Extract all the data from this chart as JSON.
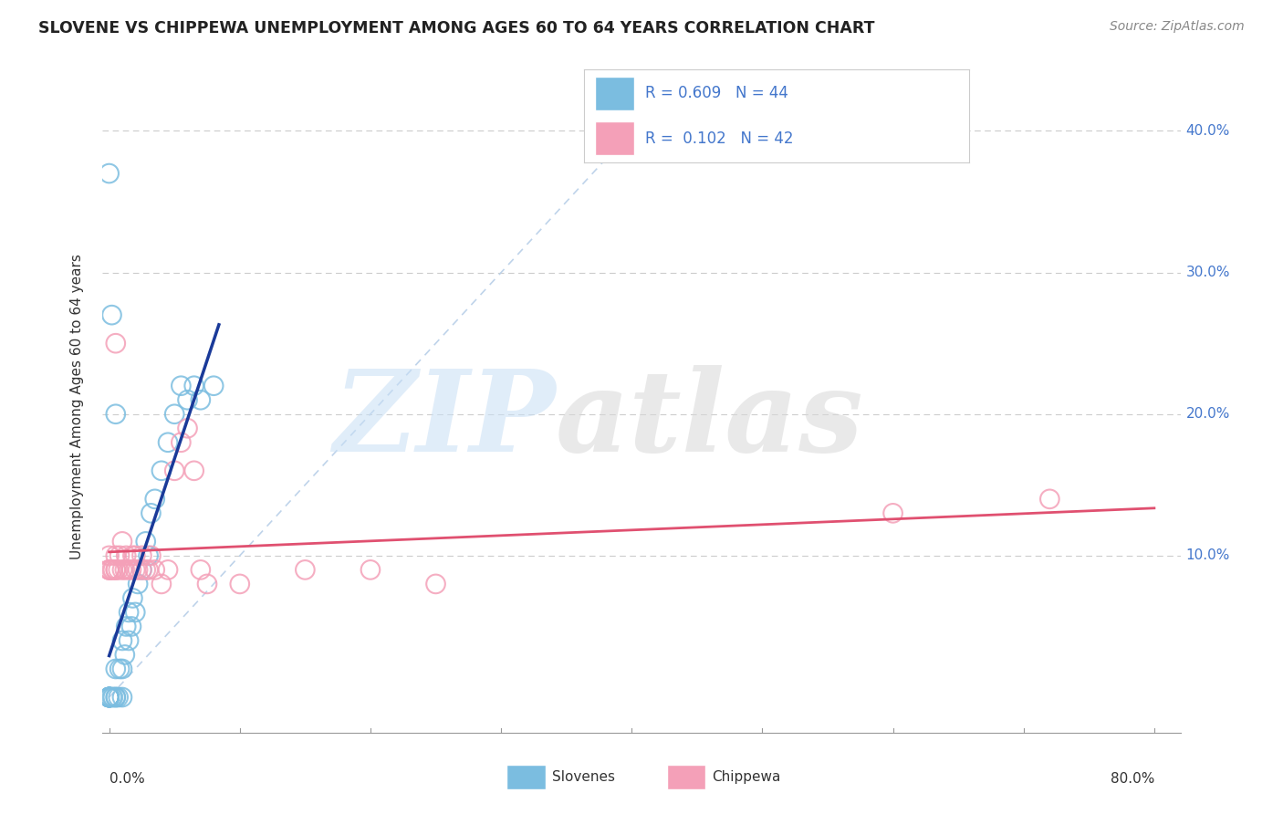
{
  "title": "SLOVENE VS CHIPPEWA UNEMPLOYMENT AMONG AGES 60 TO 64 YEARS CORRELATION CHART",
  "source": "Source: ZipAtlas.com",
  "ylabel": "Unemployment Among Ages 60 to 64 years",
  "ytick_labels": [
    "10.0%",
    "20.0%",
    "30.0%",
    "40.0%"
  ],
  "ytick_values": [
    0.1,
    0.2,
    0.3,
    0.4
  ],
  "xlim": [
    -0.005,
    0.82
  ],
  "ylim": [
    -0.025,
    0.435
  ],
  "slovene_color": "#7bbde0",
  "chippewa_color": "#f4a0b8",
  "slovene_line_color": "#1a3a99",
  "chippewa_line_color": "#e05070",
  "diagonal_color": "#b8cfe8",
  "slovene_points": [
    [
      0.0,
      0.0
    ],
    [
      0.0,
      0.0
    ],
    [
      0.0,
      0.0
    ],
    [
      0.0,
      0.0
    ],
    [
      0.0,
      0.0
    ],
    [
      0.0,
      0.0
    ],
    [
      0.0,
      0.0
    ],
    [
      0.0,
      0.0
    ],
    [
      0.0,
      0.0
    ],
    [
      0.0,
      0.0
    ],
    [
      0.002,
      0.0
    ],
    [
      0.003,
      0.0
    ],
    [
      0.005,
      0.0
    ],
    [
      0.005,
      0.0
    ],
    [
      0.005,
      0.02
    ],
    [
      0.007,
      0.0
    ],
    [
      0.008,
      0.02
    ],
    [
      0.01,
      0.0
    ],
    [
      0.01,
      0.02
    ],
    [
      0.01,
      0.04
    ],
    [
      0.012,
      0.03
    ],
    [
      0.013,
      0.05
    ],
    [
      0.015,
      0.04
    ],
    [
      0.015,
      0.06
    ],
    [
      0.017,
      0.05
    ],
    [
      0.018,
      0.07
    ],
    [
      0.02,
      0.06
    ],
    [
      0.022,
      0.08
    ],
    [
      0.025,
      0.09
    ],
    [
      0.028,
      0.11
    ],
    [
      0.03,
      0.1
    ],
    [
      0.032,
      0.13
    ],
    [
      0.035,
      0.14
    ],
    [
      0.04,
      0.16
    ],
    [
      0.045,
      0.18
    ],
    [
      0.05,
      0.2
    ],
    [
      0.055,
      0.22
    ],
    [
      0.06,
      0.21
    ],
    [
      0.065,
      0.22
    ],
    [
      0.07,
      0.21
    ],
    [
      0.08,
      0.22
    ],
    [
      0.0,
      0.37
    ],
    [
      0.002,
      0.27
    ],
    [
      0.005,
      0.2
    ]
  ],
  "chippewa_points": [
    [
      0.0,
      0.09
    ],
    [
      0.0,
      0.09
    ],
    [
      0.0,
      0.09
    ],
    [
      0.0,
      0.1
    ],
    [
      0.002,
      0.09
    ],
    [
      0.003,
      0.09
    ],
    [
      0.005,
      0.09
    ],
    [
      0.005,
      0.09
    ],
    [
      0.005,
      0.1
    ],
    [
      0.005,
      0.25
    ],
    [
      0.007,
      0.09
    ],
    [
      0.008,
      0.1
    ],
    [
      0.01,
      0.09
    ],
    [
      0.01,
      0.11
    ],
    [
      0.012,
      0.09
    ],
    [
      0.013,
      0.1
    ],
    [
      0.015,
      0.09
    ],
    [
      0.017,
      0.09
    ],
    [
      0.018,
      0.1
    ],
    [
      0.02,
      0.09
    ],
    [
      0.02,
      0.1
    ],
    [
      0.022,
      0.09
    ],
    [
      0.025,
      0.09
    ],
    [
      0.025,
      0.1
    ],
    [
      0.028,
      0.09
    ],
    [
      0.03,
      0.09
    ],
    [
      0.032,
      0.1
    ],
    [
      0.035,
      0.09
    ],
    [
      0.04,
      0.08
    ],
    [
      0.045,
      0.09
    ],
    [
      0.05,
      0.16
    ],
    [
      0.055,
      0.18
    ],
    [
      0.06,
      0.19
    ],
    [
      0.065,
      0.16
    ],
    [
      0.07,
      0.09
    ],
    [
      0.075,
      0.08
    ],
    [
      0.1,
      0.08
    ],
    [
      0.15,
      0.09
    ],
    [
      0.2,
      0.09
    ],
    [
      0.25,
      0.08
    ],
    [
      0.6,
      0.13
    ],
    [
      0.72,
      0.14
    ]
  ]
}
